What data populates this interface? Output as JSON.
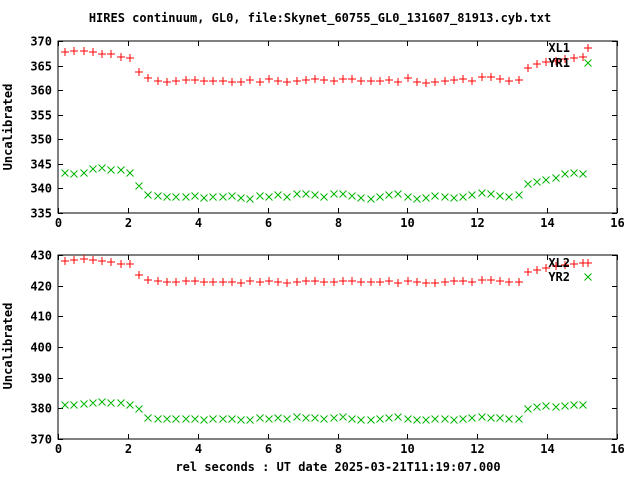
{
  "title": "HIRES continuum, GL0, file:Skynet_60755_GL0_131607_81913.cyb.txt",
  "xlabel": "rel seconds : UT date 2025-03-21T11:19:07.000",
  "colors": {
    "background": "#ffffff",
    "axis": "#000000",
    "series_red": "#ff0000",
    "series_green": "#00b400"
  },
  "chart_data": [
    {
      "type": "scatter",
      "panel": "top",
      "ylabel": "Uncalibrated",
      "xlim": [
        0,
        16
      ],
      "ylim": [
        335,
        370
      ],
      "xticks": [
        0,
        2,
        4,
        6,
        8,
        10,
        12,
        14,
        16
      ],
      "yticks": [
        335,
        340,
        345,
        350,
        355,
        360,
        365,
        370
      ],
      "grid": false,
      "legend_position": "top-right-inside",
      "x": [
        0.2,
        0.47,
        0.73,
        1.0,
        1.26,
        1.53,
        1.79,
        2.06,
        2.32,
        2.59,
        2.85,
        3.12,
        3.38,
        3.65,
        3.91,
        4.18,
        4.44,
        4.71,
        4.97,
        5.24,
        5.5,
        5.77,
        6.03,
        6.3,
        6.56,
        6.83,
        7.09,
        7.36,
        7.62,
        7.89,
        8.15,
        8.42,
        8.68,
        8.95,
        9.21,
        9.48,
        9.74,
        10.01,
        10.27,
        10.54,
        10.8,
        11.07,
        11.33,
        11.6,
        11.86,
        12.13,
        12.39,
        12.66,
        12.92,
        13.19,
        13.45,
        13.72,
        13.98,
        14.25,
        14.51,
        14.78,
        15.04
      ],
      "series": [
        {
          "name": "XL1",
          "marker": "plus",
          "color": "#ff0000",
          "y": [
            367.7,
            368.0,
            368.0,
            367.7,
            367.4,
            367.3,
            366.8,
            366.6,
            363.7,
            362.4,
            361.9,
            361.6,
            361.8,
            362.0,
            362.0,
            361.9,
            361.8,
            361.9,
            361.7,
            361.6,
            362.1,
            361.7,
            362.2,
            361.9,
            361.6,
            361.8,
            362.1,
            362.2,
            362.0,
            361.8,
            362.3,
            362.3,
            361.9,
            361.8,
            361.9,
            362.1,
            361.6,
            362.4,
            361.7,
            361.5,
            361.7,
            361.9,
            362.1,
            362.3,
            361.8,
            362.6,
            362.7,
            362.2,
            361.9,
            362.0,
            364.6,
            365.3,
            365.7,
            366.0,
            366.3,
            366.5,
            366.8
          ]
        },
        {
          "name": "YR1",
          "marker": "cross",
          "color": "#00b400",
          "y": [
            343.1,
            342.9,
            343.2,
            343.9,
            344.1,
            343.8,
            343.7,
            343.2,
            340.4,
            338.6,
            338.4,
            338.2,
            338.3,
            338.2,
            338.4,
            338.1,
            338.3,
            338.2,
            338.4,
            338.0,
            337.9,
            338.5,
            338.3,
            338.6,
            338.2,
            338.9,
            338.8,
            338.6,
            338.3,
            338.8,
            338.9,
            338.4,
            338.1,
            337.9,
            338.3,
            338.6,
            338.9,
            338.2,
            337.9,
            338.1,
            338.4,
            338.2,
            338.0,
            338.3,
            338.6,
            339.0,
            338.8,
            338.5,
            338.3,
            338.6,
            340.9,
            341.4,
            341.8,
            342.2,
            343.0,
            343.2,
            343.0
          ]
        }
      ]
    },
    {
      "type": "scatter",
      "panel": "bottom",
      "ylabel": "Uncalibrated",
      "xlim": [
        0,
        16
      ],
      "ylim": [
        370,
        430
      ],
      "xticks": [
        0,
        2,
        4,
        6,
        8,
        10,
        12,
        14,
        16
      ],
      "yticks": [
        370,
        380,
        390,
        400,
        410,
        420,
        430
      ],
      "grid": false,
      "legend_position": "top-right-inside",
      "x": [
        0.2,
        0.47,
        0.73,
        1.0,
        1.26,
        1.53,
        1.79,
        2.06,
        2.32,
        2.59,
        2.85,
        3.12,
        3.38,
        3.65,
        3.91,
        4.18,
        4.44,
        4.71,
        4.97,
        5.24,
        5.5,
        5.77,
        6.03,
        6.3,
        6.56,
        6.83,
        7.09,
        7.36,
        7.62,
        7.89,
        8.15,
        8.42,
        8.68,
        8.95,
        9.21,
        9.48,
        9.74,
        10.01,
        10.27,
        10.54,
        10.8,
        11.07,
        11.33,
        11.6,
        11.86,
        12.13,
        12.39,
        12.66,
        12.92,
        13.19,
        13.45,
        13.72,
        13.98,
        14.25,
        14.51,
        14.78,
        15.04
      ],
      "series": [
        {
          "name": "XL2",
          "marker": "plus",
          "color": "#ff0000",
          "y": [
            428.1,
            428.4,
            428.6,
            428.3,
            427.9,
            427.6,
            427.1,
            427.1,
            423.6,
            422.0,
            421.4,
            421.1,
            421.3,
            421.4,
            421.5,
            421.3,
            421.2,
            421.3,
            421.1,
            421.0,
            421.4,
            421.1,
            421.5,
            421.2,
            421.0,
            421.2,
            421.4,
            421.5,
            421.3,
            421.1,
            421.5,
            421.5,
            421.2,
            421.1,
            421.2,
            421.4,
            421.0,
            421.6,
            421.1,
            420.9,
            421.0,
            421.2,
            421.4,
            421.5,
            421.1,
            421.7,
            421.8,
            421.4,
            421.1,
            421.2,
            424.3,
            425.2,
            425.8,
            426.3,
            426.7,
            427.1,
            427.4
          ]
        },
        {
          "name": "YR2",
          "marker": "cross",
          "color": "#00b400",
          "y": [
            381.2,
            381.0,
            381.4,
            381.9,
            382.1,
            381.8,
            381.7,
            381.2,
            379.8,
            377.0,
            376.6,
            376.4,
            376.5,
            376.4,
            376.6,
            376.3,
            376.5,
            376.4,
            376.6,
            376.2,
            376.1,
            376.7,
            376.5,
            376.8,
            376.4,
            377.1,
            377.0,
            376.8,
            376.5,
            377.0,
            377.1,
            376.6,
            376.3,
            376.1,
            376.5,
            376.8,
            377.1,
            376.4,
            376.1,
            376.3,
            376.6,
            376.4,
            376.2,
            376.5,
            376.8,
            377.2,
            377.0,
            376.7,
            376.4,
            376.6,
            379.8,
            380.4,
            380.6,
            380.5,
            380.7,
            381.0,
            381.2
          ]
        }
      ]
    }
  ]
}
